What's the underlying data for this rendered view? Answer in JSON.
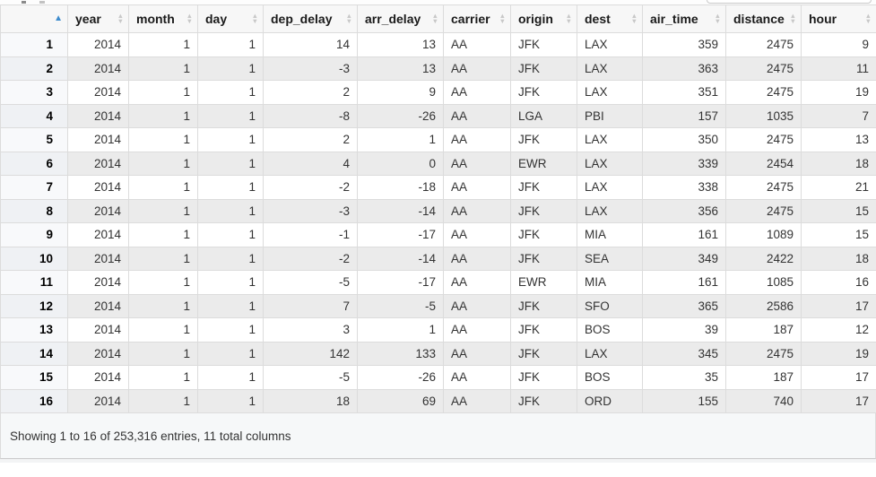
{
  "sort": {
    "active_column": "row_index",
    "direction": "ascending"
  },
  "icons": {
    "sort_ascending": "▲",
    "sort_up": "▲",
    "sort_down": "▼"
  },
  "colors": {
    "sort_arrow_active": "#3d8bcd",
    "sort_arrow_inactive": "#c8c8c8",
    "header_bg": "#f7f7f7",
    "stripe": "#ebebeb",
    "border": "#dcdcdc",
    "footer_bg": "#f6f8f9"
  },
  "table": {
    "columns": [
      "year",
      "month",
      "day",
      "dep_delay",
      "arr_delay",
      "carrier",
      "origin",
      "dest",
      "air_time",
      "distance",
      "hour"
    ],
    "string_columns": [
      "carrier",
      "origin",
      "dest"
    ],
    "rows": [
      [
        "1",
        "2014",
        "1",
        "1",
        "14",
        "13",
        "AA",
        "JFK",
        "LAX",
        "359",
        "2475",
        "9"
      ],
      [
        "2",
        "2014",
        "1",
        "1",
        "-3",
        "13",
        "AA",
        "JFK",
        "LAX",
        "363",
        "2475",
        "11"
      ],
      [
        "3",
        "2014",
        "1",
        "1",
        "2",
        "9",
        "AA",
        "JFK",
        "LAX",
        "351",
        "2475",
        "19"
      ],
      [
        "4",
        "2014",
        "1",
        "1",
        "-8",
        "-26",
        "AA",
        "LGA",
        "PBI",
        "157",
        "1035",
        "7"
      ],
      [
        "5",
        "2014",
        "1",
        "1",
        "2",
        "1",
        "AA",
        "JFK",
        "LAX",
        "350",
        "2475",
        "13"
      ],
      [
        "6",
        "2014",
        "1",
        "1",
        "4",
        "0",
        "AA",
        "EWR",
        "LAX",
        "339",
        "2454",
        "18"
      ],
      [
        "7",
        "2014",
        "1",
        "1",
        "-2",
        "-18",
        "AA",
        "JFK",
        "LAX",
        "338",
        "2475",
        "21"
      ],
      [
        "8",
        "2014",
        "1",
        "1",
        "-3",
        "-14",
        "AA",
        "JFK",
        "LAX",
        "356",
        "2475",
        "15"
      ],
      [
        "9",
        "2014",
        "1",
        "1",
        "-1",
        "-17",
        "AA",
        "JFK",
        "MIA",
        "161",
        "1089",
        "15"
      ],
      [
        "10",
        "2014",
        "1",
        "1",
        "-2",
        "-14",
        "AA",
        "JFK",
        "SEA",
        "349",
        "2422",
        "18"
      ],
      [
        "11",
        "2014",
        "1",
        "1",
        "-5",
        "-17",
        "AA",
        "EWR",
        "MIA",
        "161",
        "1085",
        "16"
      ],
      [
        "12",
        "2014",
        "1",
        "1",
        "7",
        "-5",
        "AA",
        "JFK",
        "SFO",
        "365",
        "2586",
        "17"
      ],
      [
        "13",
        "2014",
        "1",
        "1",
        "3",
        "1",
        "AA",
        "JFK",
        "BOS",
        "39",
        "187",
        "12"
      ],
      [
        "14",
        "2014",
        "1",
        "1",
        "142",
        "133",
        "AA",
        "JFK",
        "LAX",
        "345",
        "2475",
        "19"
      ],
      [
        "15",
        "2014",
        "1",
        "1",
        "-5",
        "-26",
        "AA",
        "JFK",
        "BOS",
        "35",
        "187",
        "17"
      ],
      [
        "16",
        "2014",
        "1",
        "1",
        "18",
        "69",
        "AA",
        "JFK",
        "ORD",
        "155",
        "740",
        "17"
      ]
    ]
  },
  "footer": {
    "info": "Showing 1 to 16 of 253,316 entries, 11 total columns"
  }
}
